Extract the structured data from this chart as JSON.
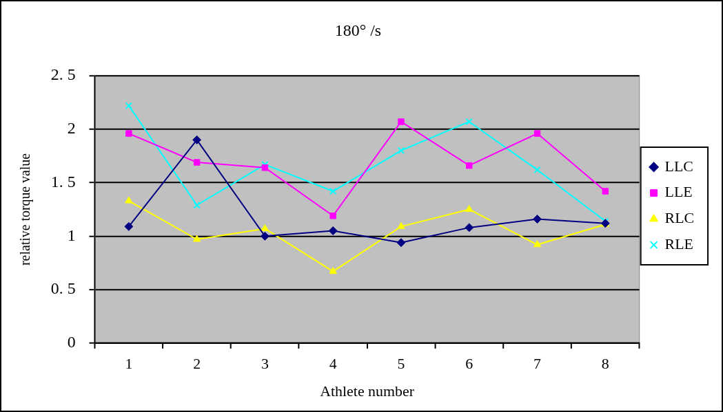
{
  "chart_data": {
    "type": "line",
    "title": "180° /s",
    "xlabel": "Athlete number",
    "ylabel": "relative torque value",
    "categories": [
      "1",
      "2",
      "3",
      "4",
      "5",
      "6",
      "7",
      "8"
    ],
    "series": [
      {
        "name": "LLC",
        "color": "#000080",
        "marker": "diamond",
        "values": [
          1.09,
          1.9,
          1.0,
          1.05,
          0.94,
          1.08,
          1.16,
          1.12
        ]
      },
      {
        "name": "LLE",
        "color": "#ff00ff",
        "marker": "square",
        "values": [
          1.96,
          1.69,
          1.64,
          1.19,
          2.07,
          1.66,
          1.96,
          1.42
        ]
      },
      {
        "name": "RLC",
        "color": "#ffff00",
        "marker": "triangle",
        "values": [
          1.33,
          0.97,
          1.07,
          0.67,
          1.09,
          1.25,
          0.92,
          1.11
        ]
      },
      {
        "name": "RLE",
        "color": "#00ffff",
        "marker": "cross",
        "values": [
          2.22,
          1.29,
          1.67,
          1.42,
          1.8,
          2.07,
          1.62,
          1.14
        ]
      }
    ],
    "ylim": [
      0,
      2.5
    ],
    "yticks": [
      0,
      {
        "value": 0.5,
        "label": "0. 5"
      },
      1,
      {
        "value": 1.5,
        "label": "1. 5"
      },
      2,
      {
        "value": 2.5,
        "label": "2. 5"
      }
    ],
    "grid": "y",
    "legend": "right",
    "line_style": "solid"
  }
}
